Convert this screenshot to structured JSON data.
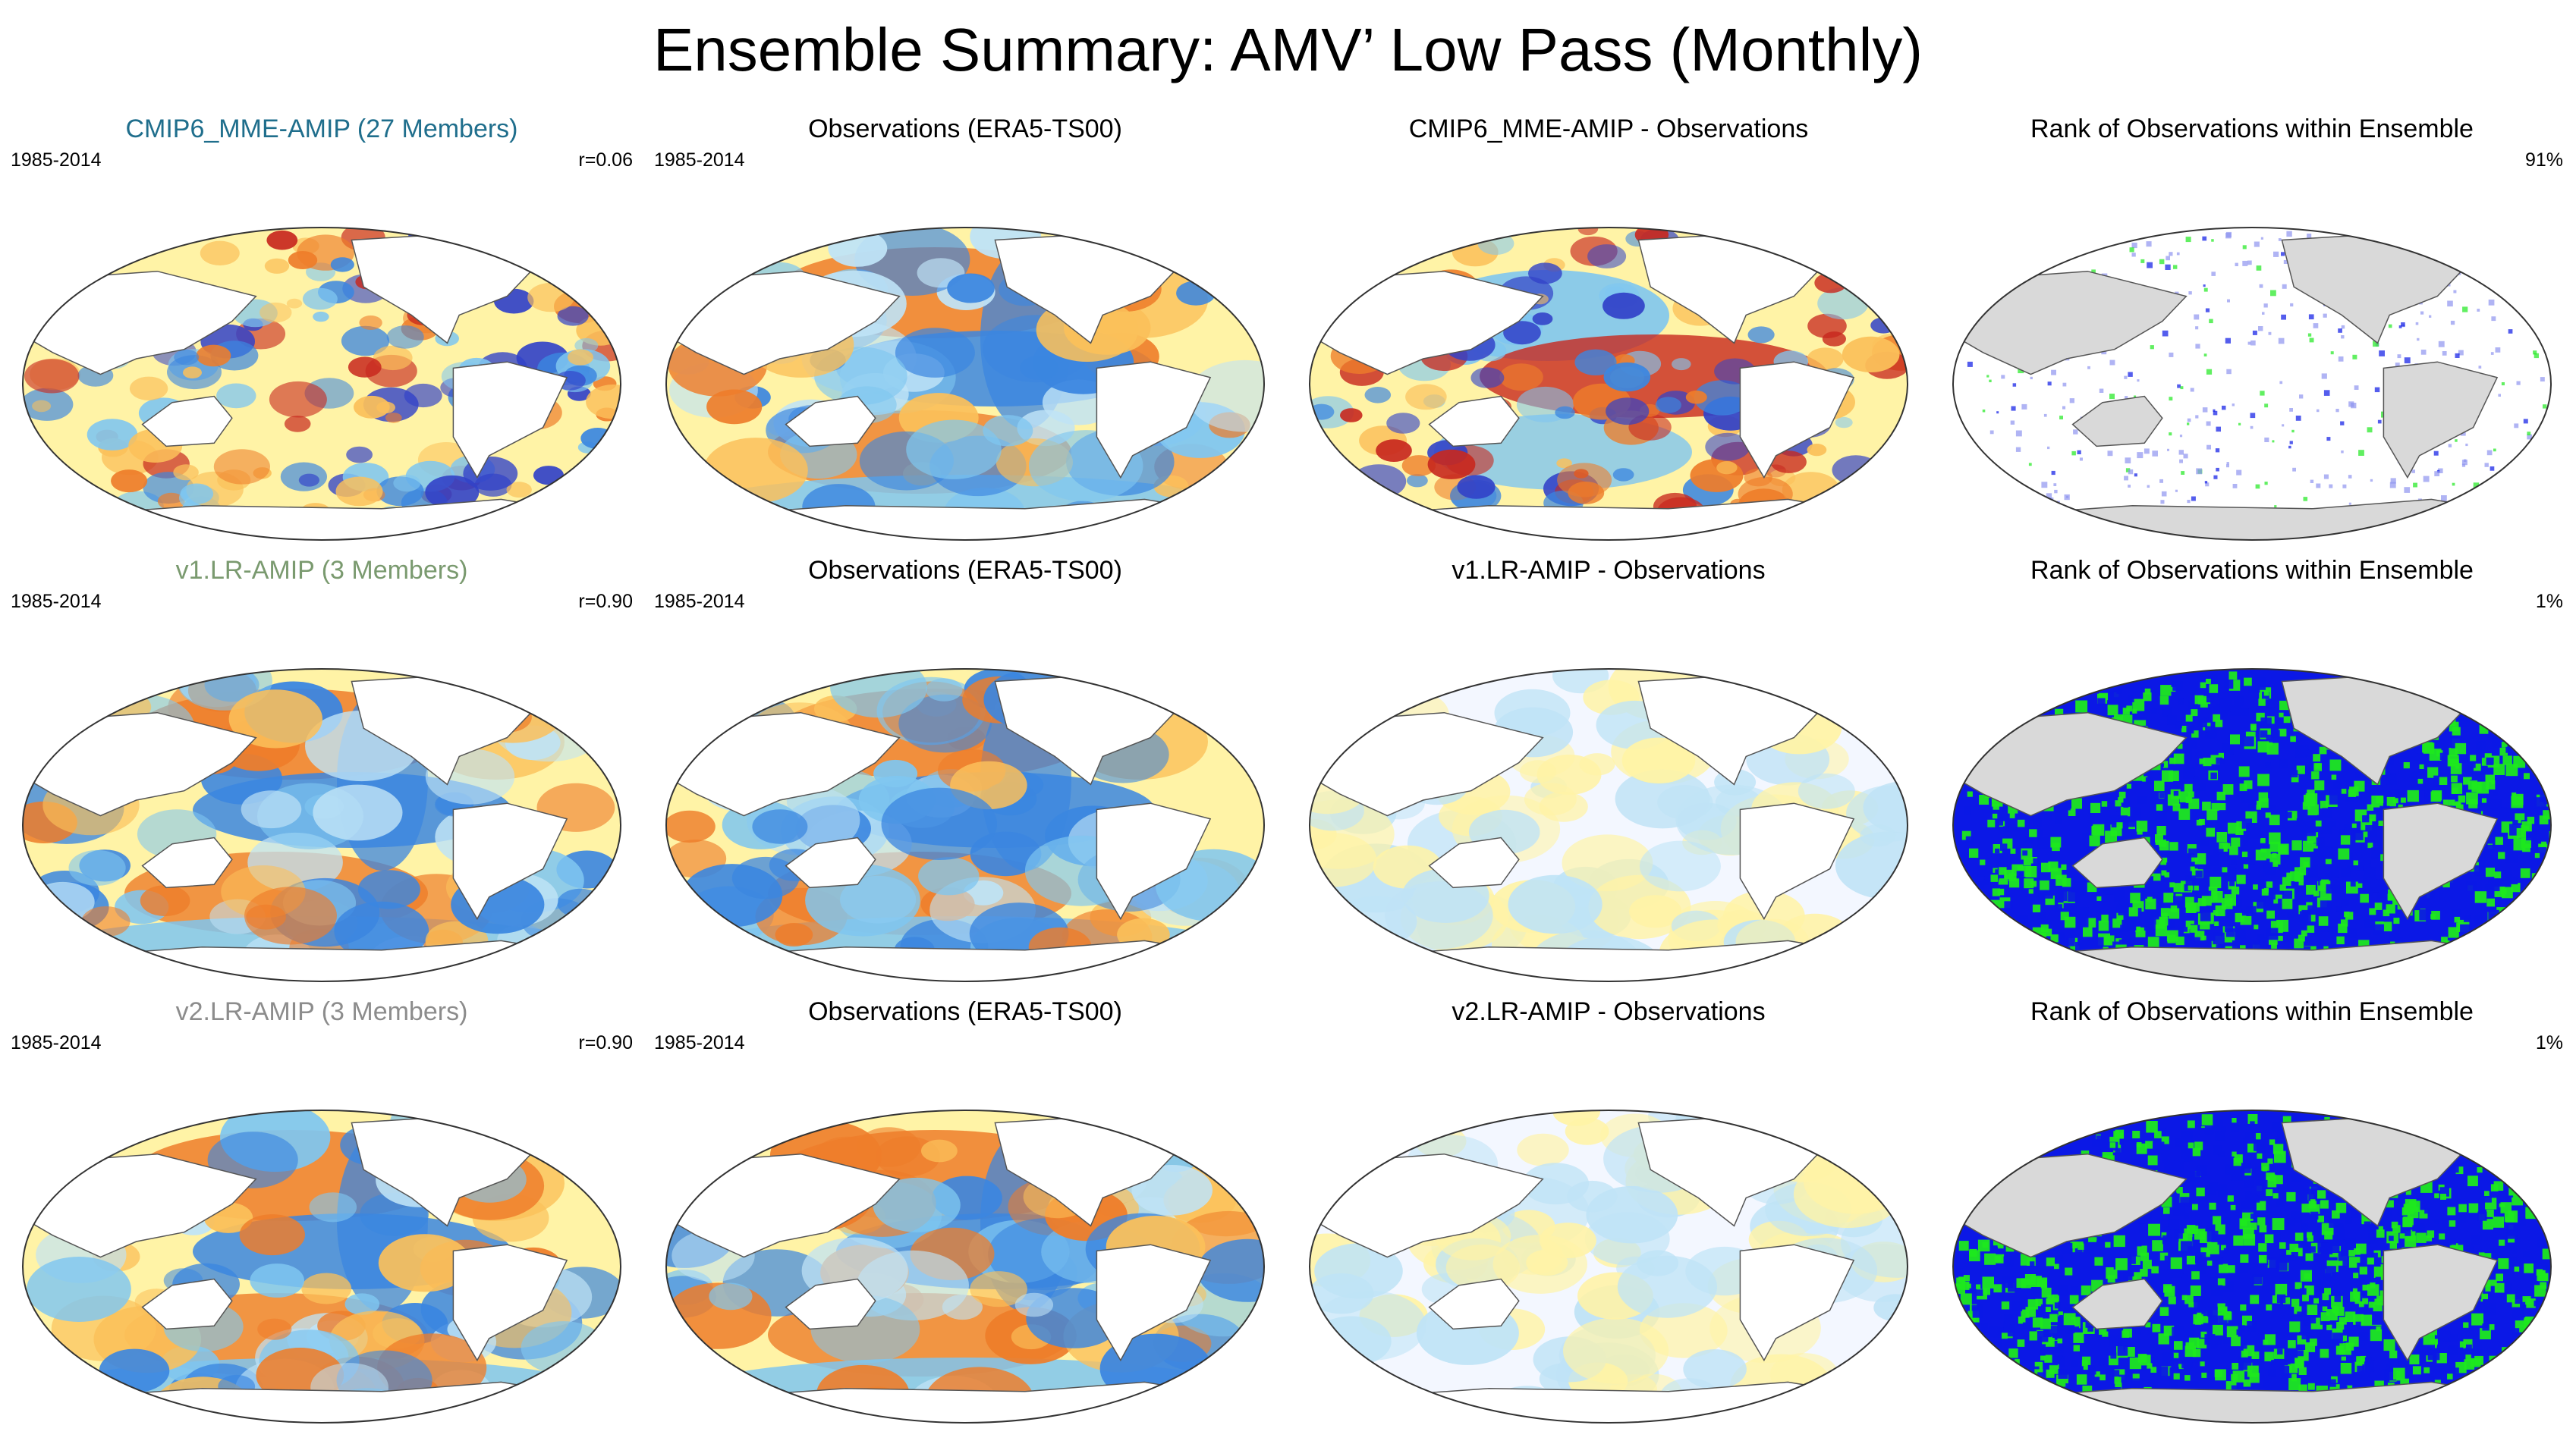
{
  "title": "Ensemble Summary: AMV’ Low Pass (Monthly)",
  "panels": [
    {
      "row": 0,
      "col": 0,
      "type": "model",
      "title": "CMIP6_MME-AMIP (27 Members)",
      "title_color": "#1f6e8c",
      "left_label": "1985-2014",
      "right_label": "r=0.06"
    },
    {
      "row": 0,
      "col": 1,
      "type": "obs",
      "title": "Observations (ERA5-TS00)",
      "title_color": "#000000",
      "left_label": "1985-2014",
      "right_label": ""
    },
    {
      "row": 0,
      "col": 2,
      "type": "diff-strong",
      "title": "CMIP6_MME-AMIP - Observations",
      "title_color": "#000000",
      "left_label": "",
      "right_label": ""
    },
    {
      "row": 0,
      "col": 3,
      "type": "rank-sparse",
      "title": "Rank of Observations within Ensemble",
      "title_color": "#000000",
      "left_label": "",
      "right_label": "91%"
    },
    {
      "row": 1,
      "col": 0,
      "type": "model-smooth",
      "title": "v1.LR-AMIP (3 Members)",
      "title_color": "#7a9a6f",
      "left_label": "1985-2014",
      "right_label": "r=0.90"
    },
    {
      "row": 1,
      "col": 1,
      "type": "obs",
      "title": "Observations (ERA5-TS00)",
      "title_color": "#000000",
      "left_label": "1985-2014",
      "right_label": ""
    },
    {
      "row": 1,
      "col": 2,
      "type": "diff-weak",
      "title": "v1.LR-AMIP - Observations",
      "title_color": "#000000",
      "left_label": "",
      "right_label": ""
    },
    {
      "row": 1,
      "col": 3,
      "type": "rank-dense",
      "title": "Rank of Observations within Ensemble",
      "title_color": "#000000",
      "left_label": "",
      "right_label": "1%"
    },
    {
      "row": 2,
      "col": 0,
      "type": "model-smooth",
      "title": "v2.LR-AMIP (3 Members)",
      "title_color": "#8c8c8c",
      "left_label": "1985-2014",
      "right_label": "r=0.90"
    },
    {
      "row": 2,
      "col": 1,
      "type": "obs",
      "title": "Observations (ERA5-TS00)",
      "title_color": "#000000",
      "left_label": "1985-2014",
      "right_label": ""
    },
    {
      "row": 2,
      "col": 2,
      "type": "diff-weak",
      "title": "v2.LR-AMIP - Observations",
      "title_color": "#000000",
      "left_label": "",
      "right_label": ""
    },
    {
      "row": 2,
      "col": 3,
      "type": "rank-dense",
      "title": "Rank of Observations within Ensemble",
      "title_color": "#000000",
      "left_label": "",
      "right_label": "1%"
    }
  ],
  "colors": {
    "warm_dark": "#c8281e",
    "warm_mid": "#ee7d2a",
    "warm_light": "#fbc05a",
    "warm_pale": "#fff3a6",
    "cool_pale": "#bfe3f6",
    "cool_light": "#7fc6f0",
    "cool_mid": "#3b86e0",
    "cool_dark": "#3242c8",
    "rank_low": "#0b18e6",
    "rank_high": "#1ee81e",
    "land_rank": "#d9d9d9",
    "land": "#ffffff"
  }
}
